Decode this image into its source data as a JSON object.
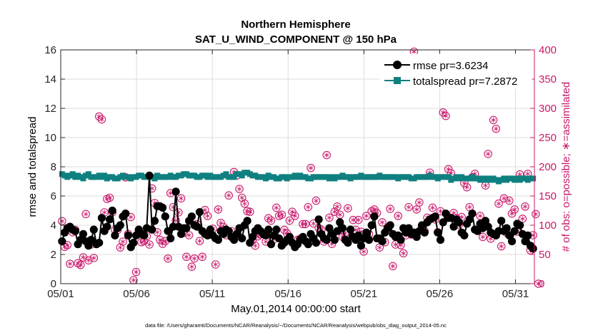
{
  "chart_data": {
    "type": "line",
    "title": "Northern Hemisphere",
    "subtitle": "SAT_U_WIND_COMPONENT @ 150 hPa",
    "xlabel": "May.01,2014 00:00:00 start",
    "ylabel": "rmse and totalspread",
    "y2label": "# of obs: o=possible; ∗=assimilated",
    "footnote": "data file: /Users/gharamti/Documents/NCAR/Reanalysis/~/Documents/NCAR/Reanalysis/webpub/obs_diag_output_2014-05.nc",
    "xlim": [
      0,
      31.25
    ],
    "ylim": [
      0,
      16
    ],
    "y2lim": [
      0,
      400
    ],
    "x_ticks": [
      0,
      5,
      10,
      15,
      20,
      25,
      30
    ],
    "x_tick_labels": [
      "05/01",
      "05/06",
      "05/11",
      "05/16",
      "05/21",
      "05/26",
      "05/31"
    ],
    "y_ticks": [
      0,
      2,
      4,
      6,
      8,
      10,
      12,
      14,
      16
    ],
    "y_tick_labels": [
      "0",
      "2",
      "4",
      "6",
      "8",
      "10",
      "12",
      "14",
      "16"
    ],
    "y2_ticks": [
      0,
      50,
      100,
      150,
      200,
      250,
      300,
      350,
      400
    ],
    "y2_tick_labels": [
      "0",
      "50",
      "100",
      "150",
      "200",
      "250",
      "300",
      "350",
      "400"
    ],
    "grid": true,
    "legend_position": "top-right",
    "colors": {
      "rmse": "#000000",
      "spread": "#0f8080",
      "obs": "#c8186a"
    },
    "series": [
      {
        "name": "rmse pr=3.6234",
        "color": "#000000",
        "marker": "circle",
        "values": [
          2.9,
          3.5,
          3.8,
          3.9,
          3.7,
          3.6,
          2.7,
          3.0,
          3.4,
          2.9,
          2.6,
          3.0,
          3.7,
          2.7,
          2.8,
          4.5,
          3.6,
          3.9,
          4.4,
          5.0,
          3.3,
          3.8,
          4.0,
          4.6,
          4.8,
          3.3,
          2.5,
          2.8,
          3.3,
          3.7,
          3.4,
          3.3,
          3.8,
          7.4,
          3.7,
          4.3,
          5.3,
          5.3,
          5.2,
          4.6,
          3.6,
          3.1,
          3.9,
          6.3,
          3.9,
          3.4,
          3.8,
          3.8,
          4.3,
          4.6,
          4.0,
          3.9,
          4.9,
          3.6,
          3.4,
          3.3,
          3.7,
          3.3,
          3.1,
          3.0,
          3.6,
          3.4,
          3.7,
          3.6,
          3.2,
          3.0,
          3.4,
          3.8,
          3.1,
          4.0,
          4.3,
          2.8,
          3.2,
          3.6,
          3.8,
          3.6,
          3.4,
          3.3,
          3.7,
          2.7,
          3.3,
          3.7,
          3.1,
          2.6,
          2.8,
          3.0,
          3.2,
          2.8,
          2.5,
          2.7,
          3.0,
          3.2,
          2.9,
          2.7,
          3.4,
          3.1,
          2.8,
          4.4,
          3.4,
          3.1,
          3.0,
          3.8,
          3.4,
          3.0,
          3.6,
          4.2,
          3.8,
          3.0,
          2.8,
          3.7,
          3.2,
          3.0,
          3.3,
          2.6,
          3.1,
          3.5,
          3.0,
          4.0,
          4.6,
          3.1,
          3.1,
          2.9,
          3.5,
          3.8,
          4.0,
          3.4,
          3.2,
          3.3,
          3.0,
          3.8,
          3.5,
          3.8,
          3.4,
          3.5,
          3.2,
          3.6,
          4.0,
          3.5,
          4.2,
          4.4,
          4.5,
          4.6,
          3.5,
          3.0,
          4.2,
          4.8,
          4.5,
          4.5,
          3.9,
          4.4,
          4.2,
          3.5,
          3.3,
          4.1,
          4.4,
          4.8,
          3.7,
          3.6,
          4.1,
          3.8,
          4.3,
          3.9,
          3.5,
          3.4,
          3.3,
          3.6,
          4.3,
          3.6,
          3.8,
          3.3,
          2.9,
          3.6,
          4.1,
          4.0,
          3.4,
          2.9,
          3.3,
          2.6,
          2.4
        ]
      },
      {
        "name": "totalspread pr=7.2872",
        "color": "#0f8080",
        "marker": "square",
        "values": [
          7.5,
          7.4,
          7.3,
          7.4,
          7.5,
          7.3,
          7.4,
          7.3,
          7.2,
          7.4,
          7.5,
          7.3,
          7.3,
          7.3,
          7.4,
          7.3,
          7.4,
          7.2,
          7.3,
          7.3,
          7.2,
          7.2,
          7.3,
          7.4,
          7.3,
          7.3,
          7.2,
          7.3,
          7.3,
          7.4,
          7.4,
          7.3,
          7.3,
          7.3,
          7.3,
          7.2,
          7.4,
          7.3,
          7.3,
          7.3,
          7.3,
          7.4,
          7.3,
          7.3,
          7.4,
          7.4,
          7.5,
          7.5,
          7.4,
          7.4,
          7.4,
          7.3,
          7.3,
          7.4,
          7.4,
          7.3,
          7.4,
          7.3,
          7.3,
          7.3,
          7.3,
          7.4,
          7.5,
          7.3,
          7.3,
          7.3,
          7.5,
          7.5,
          7.4,
          7.6,
          7.6,
          7.5,
          7.4,
          7.4,
          7.3,
          7.3,
          7.3,
          7.2,
          7.4,
          7.3,
          7.3,
          7.2,
          7.2,
          7.3,
          7.3,
          7.2,
          7.3,
          7.3,
          7.4,
          7.3,
          7.4,
          7.3,
          7.3,
          7.2,
          7.2,
          7.3,
          7.3,
          7.3,
          7.3,
          7.3,
          7.3,
          7.2,
          7.3,
          7.2,
          7.3,
          7.3,
          7.4,
          7.3,
          7.3,
          7.2,
          7.3,
          7.3,
          7.3,
          7.4,
          7.3,
          7.3,
          7.3,
          7.3,
          7.3,
          7.3,
          7.4,
          7.3,
          7.3,
          7.3,
          7.3,
          7.3,
          7.3,
          7.2,
          7.3,
          7.3,
          7.3,
          7.3,
          7.2,
          7.2,
          7.3,
          7.3,
          7.3,
          7.3,
          7.3,
          7.4,
          7.3,
          7.3,
          7.2,
          7.3,
          7.3,
          7.3,
          7.3,
          7.1,
          7.2,
          7.3,
          7.2,
          7.3,
          7.2,
          7.2,
          7.2,
          7.3,
          7.2,
          7.2,
          7.1,
          7.2,
          7.1,
          7.2,
          7.1,
          7.2,
          7.1,
          7.0,
          7.1,
          7.2,
          7.1,
          7.2,
          7.2,
          7.1,
          7.2,
          7.1,
          7.2,
          7.2,
          7.1,
          7.2,
          7.2
        ]
      },
      {
        "name": "# of obs possible / assimilated",
        "axis": "right",
        "color": "#c8186a",
        "marker": "circle-asterisk",
        "values": [
          107,
          63,
          66,
          34,
          88,
          92,
          35,
          32,
          45,
          119,
          40,
          67,
          44,
          68,
          286,
          281,
          122,
          145,
          147,
          122,
          92,
          92,
          62,
          72,
          182,
          85,
          114,
          6,
          20,
          91,
          71,
          73,
          81,
          67,
          163,
          138,
          88,
          75,
          68,
          73,
          43,
          155,
          131,
          108,
          122,
          146,
          87,
          46,
          83,
          29,
          43,
          102,
          73,
          46,
          126,
          116,
          85,
          94,
          33,
          127,
          104,
          97,
          83,
          151,
          90,
          191,
          185,
          162,
          147,
          137,
          124,
          123,
          75,
          65,
          81,
          84,
          85,
          72,
          112,
          108,
          76,
          130,
          116,
          118,
          92,
          86,
          108,
          123,
          116,
          75,
          77,
          102,
          102,
          131,
          198,
          103,
          142,
          95,
          92,
          72,
          220,
          113,
          68,
          123,
          132,
          118,
          80,
          87,
          129,
          78,
          109,
          92,
          109,
          89,
          55,
          116,
          85,
          124,
          127,
          121,
          62,
          105,
          71,
          96,
          128,
          30,
          67,
          116,
          66,
          52,
          83,
          131,
          84,
          397,
          127,
          139,
          96,
          90,
          113,
          190,
          130,
          110,
          88,
          124,
          293,
          287,
          196,
          189,
          121,
          112,
          101,
          114,
          172,
          165,
          131,
          182,
          188,
          92,
          116,
          80,
          168,
          222,
          77,
          280,
          265,
          137,
          64,
          146,
          87,
          142,
          120,
          127,
          89,
          187,
          111,
          132,
          188,
          57,
          83,
          119,
          0
        ]
      }
    ]
  }
}
